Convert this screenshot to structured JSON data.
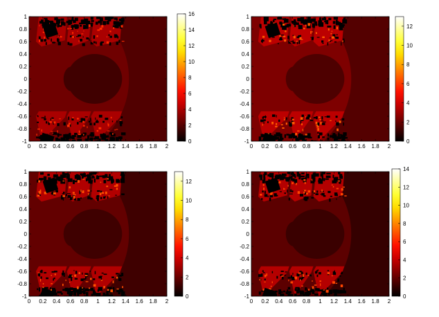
{
  "chart_data": [
    {
      "type": "heatmap",
      "title": "",
      "xlabel": "",
      "ylabel": "",
      "xlim": [
        0,
        2
      ],
      "ylim": [
        -1,
        1
      ],
      "xticks": [
        "0",
        "0.2",
        "0.4",
        "0.6",
        "0.8",
        "1",
        "1.2",
        "1.4",
        "1.6",
        "1.8",
        "2"
      ],
      "yticks": [
        "1",
        "0.8",
        "0.6",
        "0.4",
        "0.2",
        "0",
        "-0.2",
        "-0.4",
        "-0.6",
        "-0.8",
        "-1"
      ],
      "colormap": "hot",
      "colorbar": {
        "range": [
          0,
          16
        ],
        "ticks": [
          "16",
          "14",
          "12",
          "10",
          "8",
          "6",
          "4",
          "2",
          "0"
        ]
      },
      "background_value": 1.9,
      "region_values": {
        "inner_band": 2.6,
        "central_disk": 1.5,
        "fractal_blocks": 4.0,
        "fractal_edges": 0.0
      },
      "grid": false
    },
    {
      "type": "heatmap",
      "title": "",
      "xlabel": "",
      "ylabel": "",
      "xlim": [
        0,
        2
      ],
      "ylim": [
        -1,
        1
      ],
      "xticks": [
        "0",
        "0.2",
        "0.4",
        "0.6",
        "0.8",
        "1",
        "1.2",
        "1.4",
        "1.6",
        "1.8",
        "2"
      ],
      "yticks": [
        "1",
        "0.8",
        "0.6",
        "0.4",
        "0.2",
        "0",
        "-0.2",
        "-0.4",
        "-0.6",
        "-0.8",
        "-1"
      ],
      "colormap": "hot",
      "colorbar": {
        "range": [
          0,
          13
        ],
        "ticks": [
          "12",
          "10",
          "8",
          "6",
          "4",
          "2",
          "0"
        ]
      },
      "background_value": 1.6,
      "region_values": {
        "inner_band": 2.4,
        "central_disk": 1.5,
        "fractal_blocks": 3.6,
        "fractal_edges": 0.0
      },
      "grid": false
    },
    {
      "type": "heatmap",
      "title": "",
      "xlabel": "",
      "ylabel": "",
      "xlim": [
        0,
        2
      ],
      "ylim": [
        -1,
        1
      ],
      "xticks": [
        "0",
        "0.2",
        "0.4",
        "0.6",
        "0.8",
        "1",
        "1.2",
        "1.4",
        "1.6",
        "1.8",
        "2"
      ],
      "yticks": [
        "1",
        "0.8",
        "0.6",
        "0.4",
        "0.2",
        "0",
        "-0.2",
        "-0.4",
        "-0.6",
        "-0.8",
        "-1"
      ],
      "colormap": "hot",
      "colorbar": {
        "range": [
          0,
          13
        ],
        "ticks": [
          "12",
          "10",
          "8",
          "6",
          "4",
          "2",
          "0"
        ]
      },
      "background_value": 1.2,
      "region_values": {
        "inner_band": 1.9,
        "central_disk": 1.2,
        "fractal_blocks": 3.4,
        "fractal_edges": 0.0
      },
      "grid": false
    },
    {
      "type": "heatmap",
      "title": "",
      "xlabel": "",
      "ylabel": "",
      "xlim": [
        0,
        2
      ],
      "ylim": [
        -1,
        1
      ],
      "xticks": [
        "0",
        "0.2",
        "0.4",
        "0.6",
        "0.8",
        "1",
        "1.2",
        "1.4",
        "1.6",
        "1.8",
        "2"
      ],
      "yticks": [
        "1",
        "0.8",
        "0.6",
        "0.4",
        "0.2",
        "0",
        "-0.2",
        "-0.4",
        "-0.6",
        "-0.8",
        "-1"
      ],
      "colormap": "hot",
      "colorbar": {
        "range": [
          0,
          14
        ],
        "ticks": [
          "14",
          "12",
          "10",
          "8",
          "6",
          "4",
          "2",
          "0"
        ]
      },
      "background_value": 1.1,
      "region_values": {
        "inner_band": 1.9,
        "central_disk": 1.2,
        "fractal_blocks": 3.7,
        "fractal_edges": 0.0
      },
      "grid": false
    }
  ]
}
